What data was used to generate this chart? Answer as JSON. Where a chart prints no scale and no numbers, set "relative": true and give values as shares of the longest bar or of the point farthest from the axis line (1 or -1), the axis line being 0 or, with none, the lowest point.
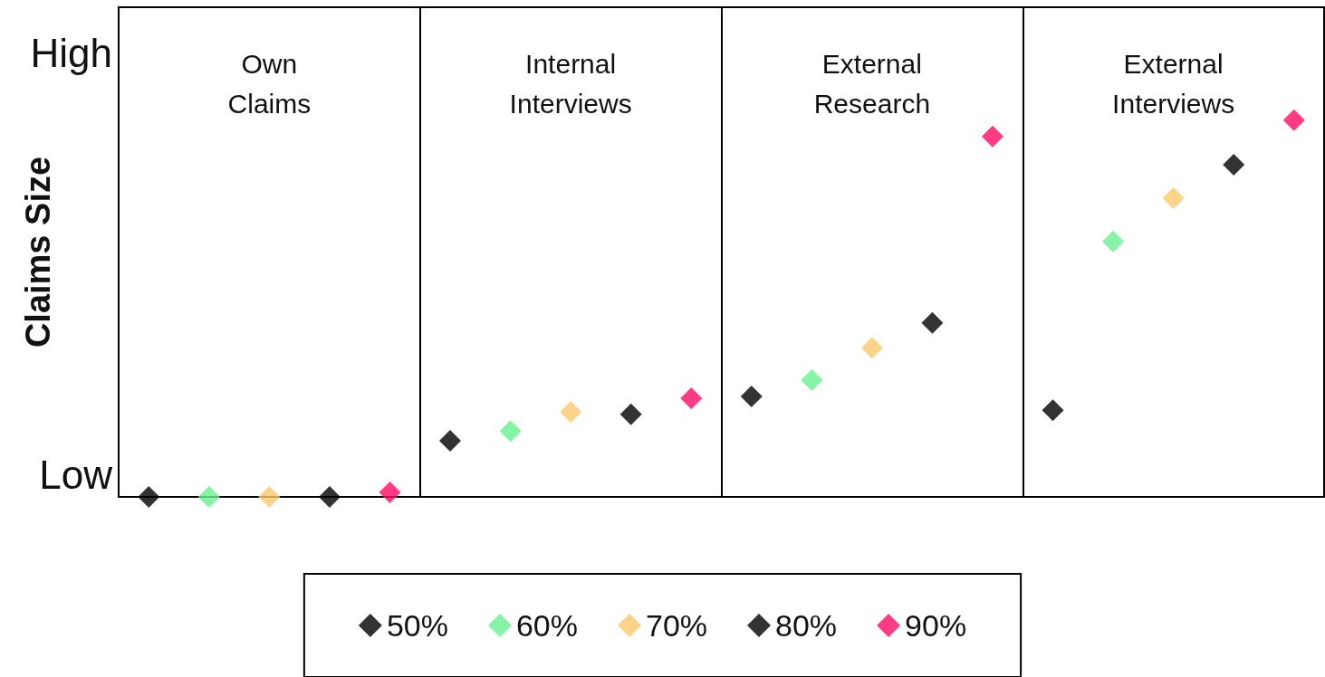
{
  "chart_data": {
    "type": "scatter",
    "ylabel": "Claims Size",
    "relative": true,
    "annotations": [
      "High",
      "Low"
    ],
    "categories": [
      "Own Claims",
      "Internal Interviews",
      "External Research",
      "External Interviews"
    ],
    "marker": "diamond",
    "legend": "bottom",
    "series": [
      {
        "name": "50%",
        "color": "#000000",
        "values": [
          0,
          0.149,
          0.267,
          0.23
        ]
      },
      {
        "name": "60%",
        "color": "#66f28e",
        "values": [
          0,
          0.175,
          0.31,
          0.678
        ]
      },
      {
        "name": "70%",
        "color": "#fcc86a",
        "values": [
          0,
          0.226,
          0.396,
          0.793
        ]
      },
      {
        "name": "80%",
        "color": "#000000",
        "values": [
          0,
          0.219,
          0.462,
          0.882
        ]
      },
      {
        "name": "90%",
        "color": "#ff0a64",
        "values": [
          0.012,
          0.262,
          0.957,
          1
        ]
      }
    ]
  }
}
